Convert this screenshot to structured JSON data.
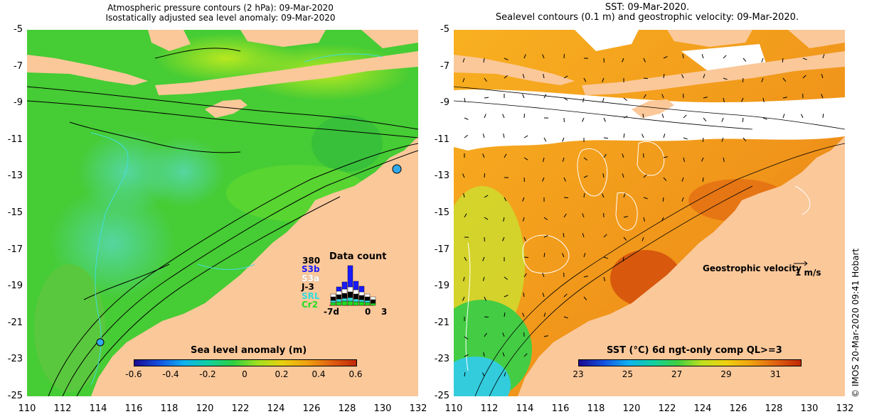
{
  "left_panel": {
    "title_line1": "Atmospheric pressure contours (2 hPa): 09-Mar-2020",
    "title_line2": "Isostatically adjusted sea level anomaly: 09-Mar-2020",
    "colorbar": {
      "title": "Sea level anomaly (m)",
      "labels": [
        "-0.6",
        "-0.4",
        "-0.2",
        "0",
        "0.2",
        "0.4",
        "0.6"
      ],
      "range": [
        -0.6,
        0.6
      ]
    },
    "data_count": {
      "title": "Data count",
      "max_label": "380",
      "missions": [
        {
          "name": "S3b",
          "color": "#1a1aff"
        },
        {
          "name": "S3a",
          "color": "#ffffff"
        },
        {
          "name": "J-3",
          "color": "#000000"
        },
        {
          "name": "SRL",
          "color": "#33dddd"
        },
        {
          "name": "Cr2",
          "color": "#22dd22"
        }
      ],
      "x_labels": [
        "-7d",
        "0",
        "3"
      ]
    }
  },
  "right_panel": {
    "title_line1": "SST: 09-Mar-2020.",
    "title_line2": "Sealevel contours (0.1 m) and geostrophic velocity: 09-Mar-2020.",
    "colorbar": {
      "title": "SST (°C) 6d ngt-only comp QL>=3",
      "labels": [
        "23",
        "25",
        "27",
        "29",
        "31"
      ],
      "range": [
        23,
        32
      ]
    },
    "geostrophic_label": "Geostrophic velocity",
    "velocity_scale": "1 m/s"
  },
  "axes": {
    "y_ticks": [
      "-5",
      "-7",
      "-9",
      "-11",
      "-13",
      "-15",
      "-17",
      "-19",
      "-21",
      "-23",
      "-25"
    ],
    "x_ticks": [
      "110",
      "112",
      "114",
      "116",
      "118",
      "120",
      "122",
      "124",
      "126",
      "128",
      "130",
      "132"
    ]
  },
  "credit": "© IMOS 20-Mar-2020 09:41 Hobart",
  "colors": {
    "land": "#fbc89a",
    "ocean_green": "#44cc33",
    "ocean_orange": "#f59a14",
    "sst_red": "#d2480a"
  }
}
